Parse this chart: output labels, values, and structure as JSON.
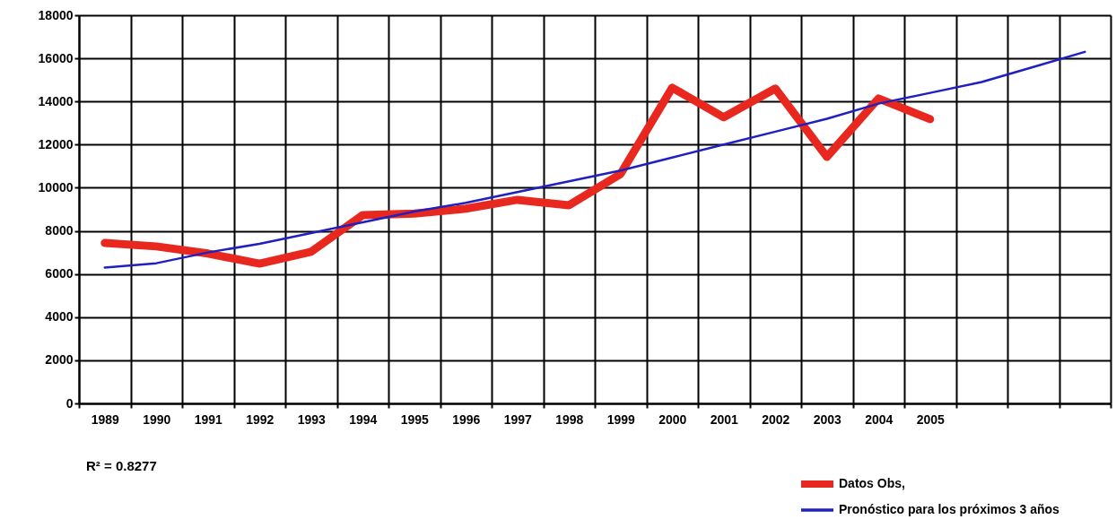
{
  "chart_data": {
    "type": "line",
    "categories": [
      "1989",
      "1990",
      "1991",
      "1992",
      "1993",
      "1994",
      "1995",
      "1996",
      "1997",
      "1998",
      "1999",
      "2000",
      "2001",
      "2002",
      "2003",
      "2004",
      "2005",
      null,
      null,
      null
    ],
    "series": [
      {
        "name": "Datos Obs,",
        "color": "#e8281e",
        "values": [
          7440,
          7280,
          6950,
          6480,
          7030,
          8730,
          8800,
          9030,
          9440,
          9190,
          10640,
          14640,
          13270,
          14600,
          11430,
          14140,
          13180,
          null,
          null,
          null
        ]
      },
      {
        "name": "Pronóstico para los próximos 3 años",
        "color": "#2020c0",
        "values": [
          6300,
          6500,
          7000,
          7400,
          7900,
          8400,
          8900,
          9300,
          9800,
          10300,
          10800,
          11400,
          12000,
          12600,
          13200,
          13900,
          14400,
          14900,
          15600,
          16300
        ]
      }
    ],
    "ylim": [
      0,
      18000
    ],
    "yticks": [
      0,
      2000,
      4000,
      6000,
      8000,
      10000,
      12000,
      14000,
      16000,
      18000
    ],
    "grid": true,
    "legend": "bottom right",
    "marker": "none",
    "line_style": "solid",
    "annotations": [
      "R² = 0.8277"
    ]
  }
}
